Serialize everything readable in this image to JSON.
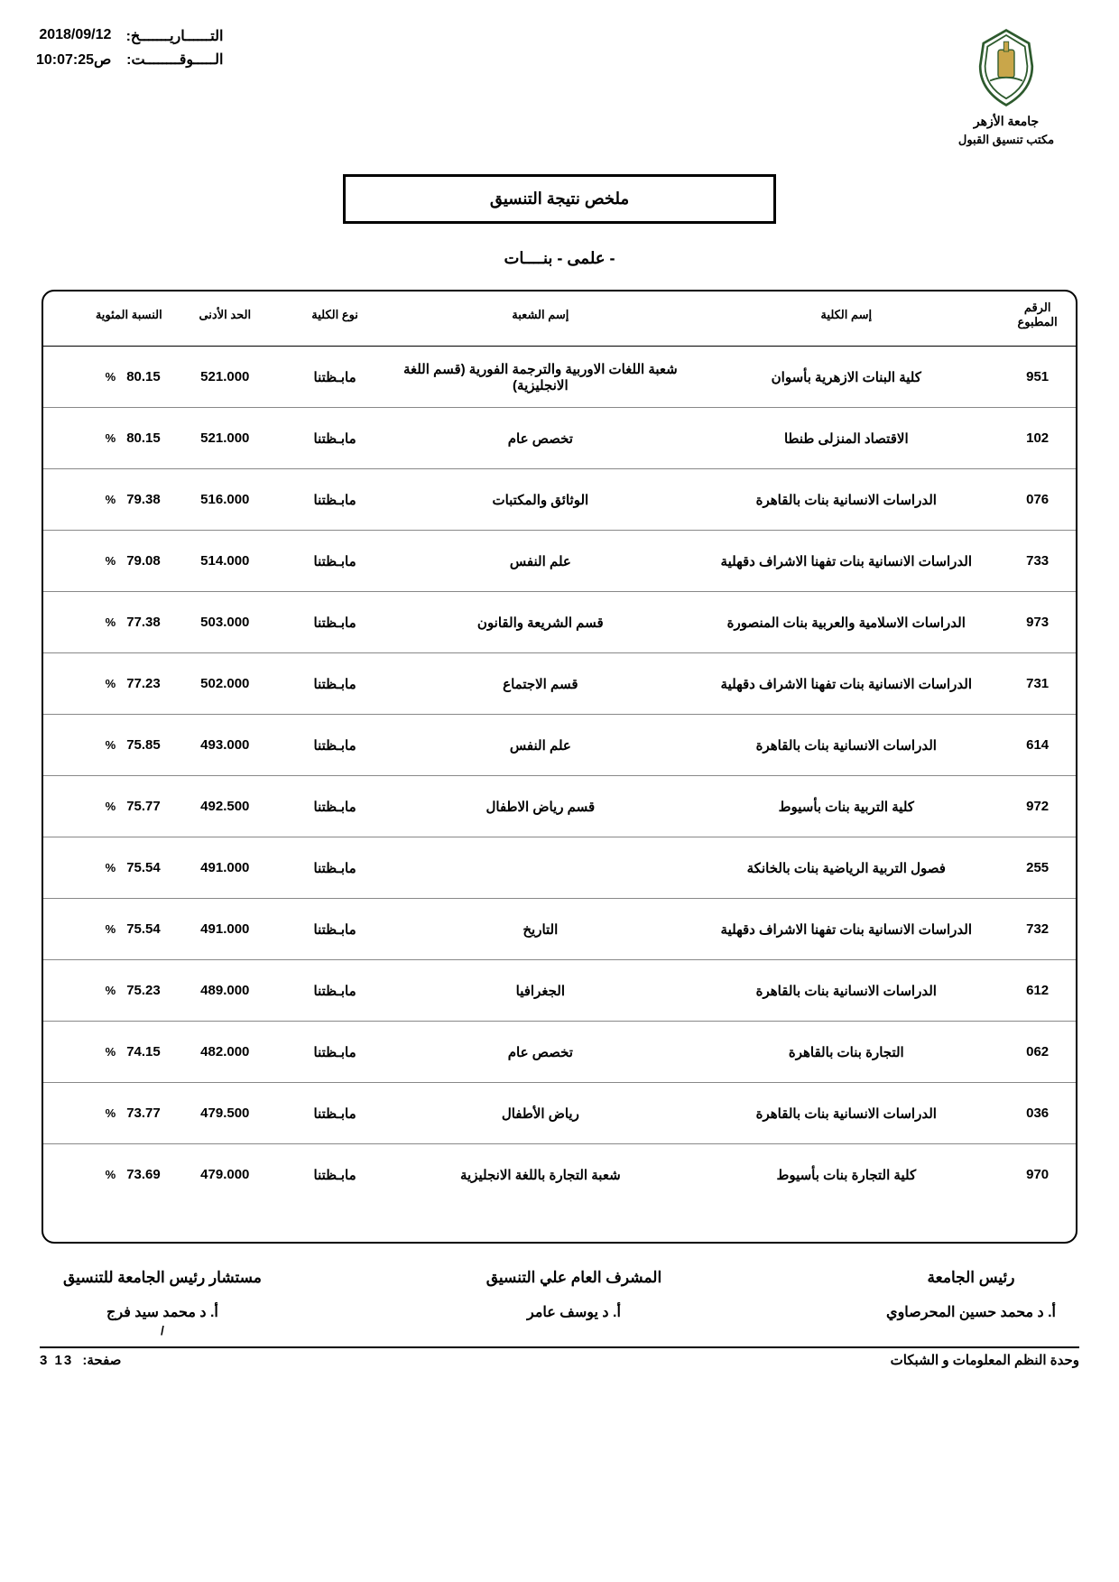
{
  "header": {
    "date_label": "التــــــاريـــــــخ:",
    "date_value": "2018/09/12",
    "time_label": "الـــــوقــــــــت:",
    "time_value": "ص10:07:25",
    "university": "جامعة الأزهر",
    "office": "مكتب تنسيق القبول",
    "logo_stroke": "#2d5a2d",
    "logo_fill": "#c9a64a"
  },
  "title": "ملخص نتيجة التنسيق",
  "subtitle": "- علمى - بنــــات",
  "columns": {
    "code": "الرقم المطبوع",
    "college": "إسم الكلية",
    "dept": "إسم الشعبة",
    "type": "نوع الكلية",
    "min": "الحد الأدنى",
    "pct": "النسبة المئوية"
  },
  "type_value": "مابـظتنا",
  "pct_sign": "%",
  "rows": [
    {
      "code": "951",
      "college": "كلية البنات الازهرية بأسوان",
      "dept": "شعبة اللغات الاوربية والترجمة الفورية (قسم اللغة الانجليزية)",
      "min": "521.000",
      "pct": "80.15"
    },
    {
      "code": "102",
      "college": "الاقتصاد المنزلى طنطا",
      "dept": "تخصص عام",
      "min": "521.000",
      "pct": "80.15"
    },
    {
      "code": "076",
      "college": "الدراسات الانسانية بنات بالقاهرة",
      "dept": "الوثائق والمكتبات",
      "min": "516.000",
      "pct": "79.38"
    },
    {
      "code": "733",
      "college": "الدراسات الانسانية بنات تفهنا الاشراف دقهلية",
      "dept": "علم النفس",
      "min": "514.000",
      "pct": "79.08"
    },
    {
      "code": "973",
      "college": "الدراسات الاسلامية والعربية بنات المنصورة",
      "dept": "قسم الشريعة والقانون",
      "min": "503.000",
      "pct": "77.38"
    },
    {
      "code": "731",
      "college": "الدراسات الانسانية بنات تفهنا الاشراف دقهلية",
      "dept": "قسم الاجتماع",
      "min": "502.000",
      "pct": "77.23"
    },
    {
      "code": "614",
      "college": "الدراسات الانسانية بنات بالقاهرة",
      "dept": "علم النفس",
      "min": "493.000",
      "pct": "75.85"
    },
    {
      "code": "972",
      "college": "كلية التربية بنات بأسيوط",
      "dept": "قسم رياض الاطفال",
      "min": "492.500",
      "pct": "75.77"
    },
    {
      "code": "255",
      "college": "فصول التربية الرياضية بنات بالخانكة",
      "dept": "",
      "min": "491.000",
      "pct": "75.54"
    },
    {
      "code": "732",
      "college": "الدراسات الانسانية بنات تفهنا الاشراف دقهلية",
      "dept": "التاريخ",
      "min": "491.000",
      "pct": "75.54"
    },
    {
      "code": "612",
      "college": "الدراسات الانسانية بنات بالقاهرة",
      "dept": "الجغرافيا",
      "min": "489.000",
      "pct": "75.23"
    },
    {
      "code": "062",
      "college": "التجارة بنات بالقاهرة",
      "dept": "تخصص عام",
      "min": "482.000",
      "pct": "74.15"
    },
    {
      "code": "036",
      "college": "الدراسات الانسانية بنات بالقاهرة",
      "dept": "رياض الأطفال",
      "min": "479.500",
      "pct": "73.77"
    },
    {
      "code": "970",
      "college": "كلية التجارة بنات بأسيوط",
      "dept": "شعبة التجارة باللغة الانجليزية",
      "min": "479.000",
      "pct": "73.69"
    }
  ],
  "signatures": {
    "s1": {
      "role": "مستشار رئيس الجامعة للتنسيق",
      "name": "أ. د محمد سيد فرج"
    },
    "s2": {
      "role": "المشرف العام علي التنسيق",
      "name": "أ. د يوسف عامر"
    },
    "s3": {
      "role": "رئيس الجامعة",
      "name": "أ. د محمد حسين المحرصاوي"
    }
  },
  "footer": {
    "page_label": "صفحة:",
    "page_value": "3  13",
    "unit": "وحدة النظم المعلومات و الشبكات",
    "slash": "/"
  }
}
